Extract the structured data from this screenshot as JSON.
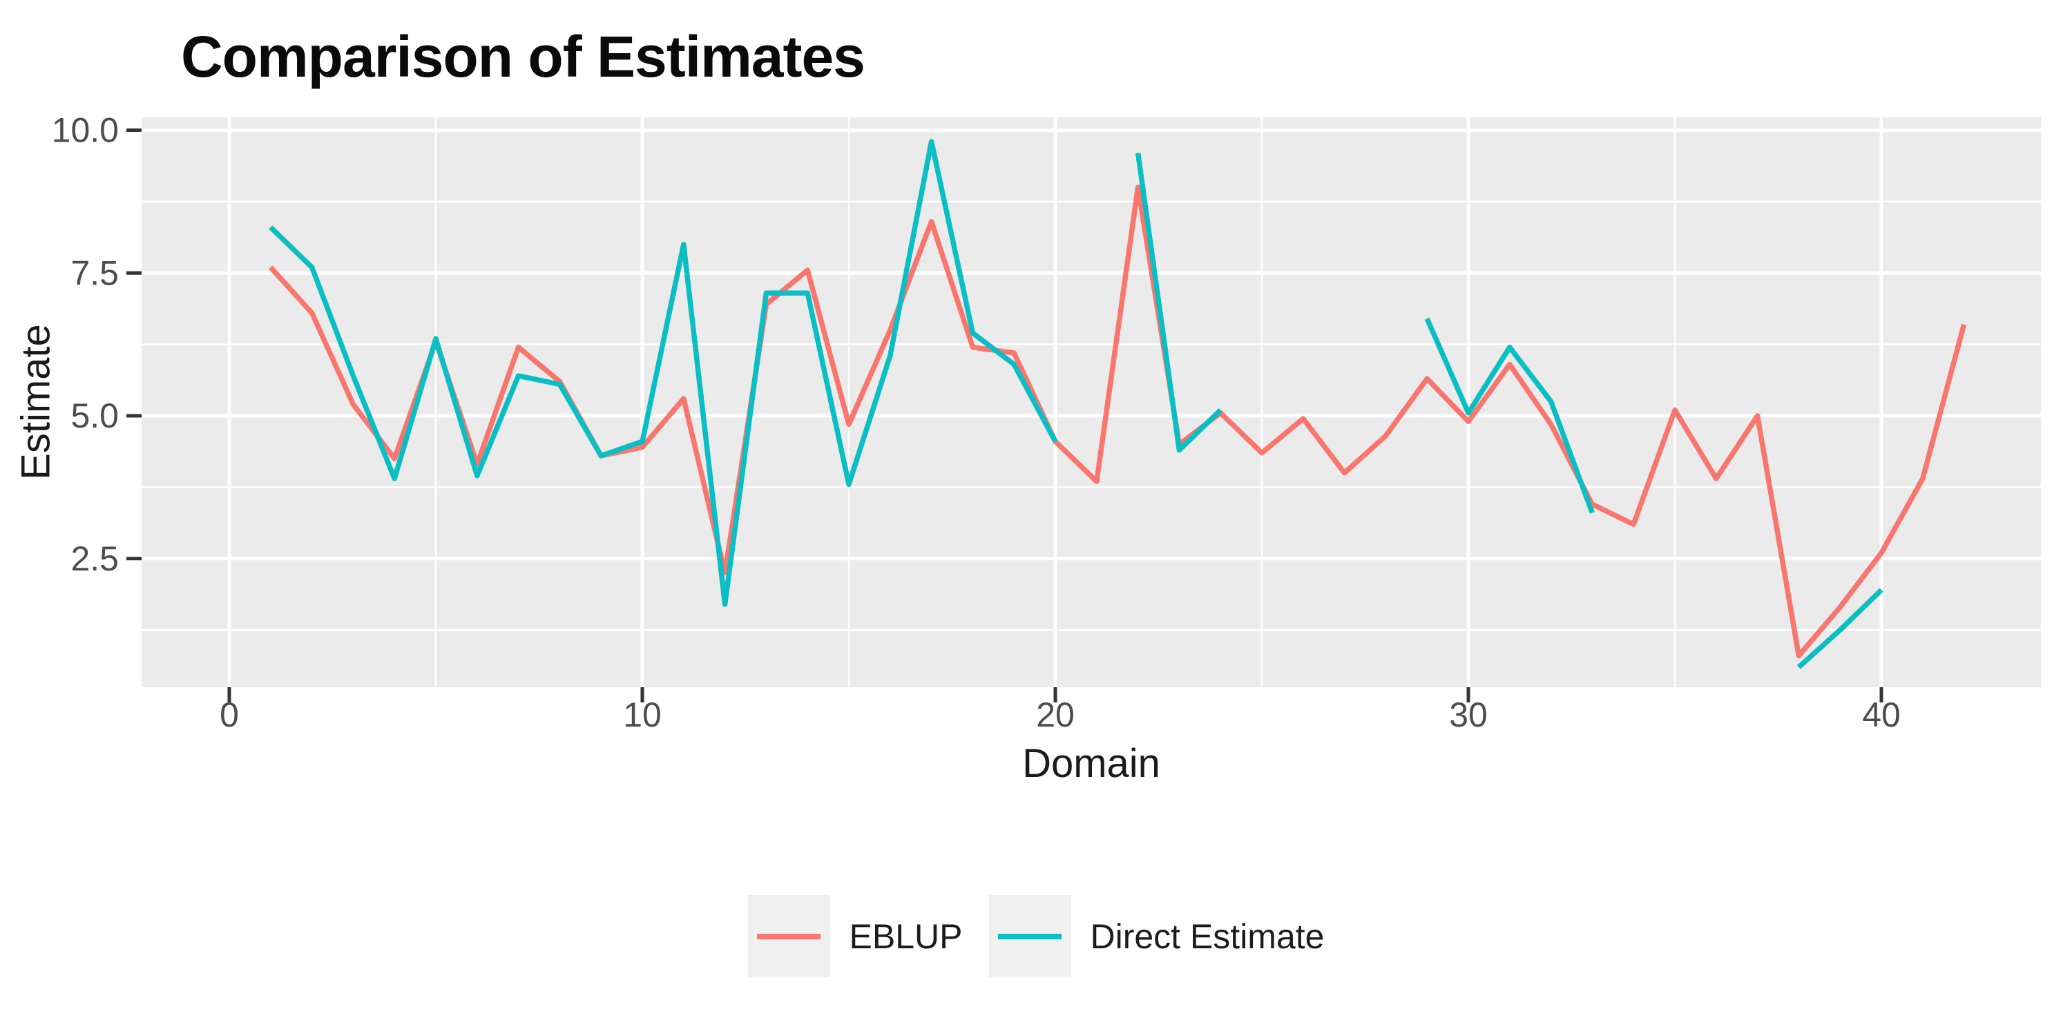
{
  "chart_data": {
    "type": "line",
    "title": "Comparison of Estimates",
    "xlabel": "Domain",
    "ylabel": "Estimate",
    "grid": true,
    "legend_position": "bottom",
    "xlim": [
      -2.1,
      43.9
    ],
    "ylim": [
      0.25,
      10.2
    ],
    "x_axis": {
      "ticks": [
        {
          "label": "0",
          "value": 0
        },
        {
          "label": "10",
          "value": 10
        },
        {
          "label": "20",
          "value": 20
        },
        {
          "label": "30",
          "value": 30
        },
        {
          "label": "40",
          "value": 40
        }
      ],
      "minor_ticks": [
        5,
        15,
        25,
        35
      ]
    },
    "y_axis": {
      "ticks": [
        {
          "label": "2.5",
          "value": 2.5
        },
        {
          "label": "5.0",
          "value": 5.0
        },
        {
          "label": "7.5",
          "value": 7.5
        },
        {
          "label": "10.0",
          "value": 10.0
        }
      ],
      "minor_ticks": [
        1.25,
        3.75,
        6.25,
        8.75
      ]
    },
    "x": [
      1,
      2,
      3,
      4,
      5,
      6,
      7,
      8,
      9,
      10,
      11,
      12,
      13,
      14,
      15,
      16,
      17,
      18,
      19,
      20,
      21,
      22,
      23,
      24,
      25,
      26,
      27,
      28,
      29,
      30,
      31,
      32,
      33,
      34,
      35,
      36,
      37,
      38,
      39,
      40,
      41,
      42
    ],
    "series": [
      {
        "name": "EBLUP",
        "color": "#F8766D",
        "values": [
          7.6,
          6.8,
          5.2,
          4.25,
          6.3,
          4.15,
          6.2,
          5.6,
          4.3,
          4.45,
          5.3,
          2.25,
          6.95,
          7.55,
          4.85,
          6.5,
          8.4,
          6.2,
          6.1,
          4.55,
          3.85,
          9.0,
          4.5,
          5.05,
          4.35,
          4.95,
          4.0,
          4.65,
          5.65,
          4.9,
          5.9,
          4.85,
          3.45,
          3.1,
          5.1,
          3.9,
          5.0,
          0.8,
          1.65,
          2.6,
          3.9,
          6.6
        ]
      },
      {
        "name": "Direct Estimate",
        "color": "#0BBEC3",
        "values": [
          8.3,
          7.6,
          5.7,
          3.9,
          6.35,
          3.95,
          5.7,
          5.55,
          4.3,
          4.55,
          8.0,
          1.7,
          7.15,
          7.15,
          3.8,
          6.05,
          9.8,
          6.45,
          5.9,
          4.55,
          null,
          9.6,
          4.4,
          5.1,
          null,
          null,
          null,
          null,
          6.7,
          5.05,
          6.2,
          5.25,
          3.3,
          null,
          null,
          null,
          null,
          0.6,
          1.25,
          1.95,
          null,
          null
        ]
      }
    ]
  },
  "legend": {
    "items": [
      {
        "label": "EBLUP",
        "color": "#F8766D"
      },
      {
        "label": "Direct Estimate",
        "color": "#0BBEC3"
      }
    ]
  },
  "colors": {
    "page_bg": "#FFFFFF",
    "panel_bg": "#EBEBEB",
    "grid_major": "#FFFFFF",
    "grid_minor": "#FFFFFF",
    "tick_mark": "#333333",
    "axis_text": "#4D4D4D",
    "axis_title": "#1A1A1A",
    "title_text": "#0A0A0A",
    "legend_key_bg": "#F0F0F0"
  }
}
